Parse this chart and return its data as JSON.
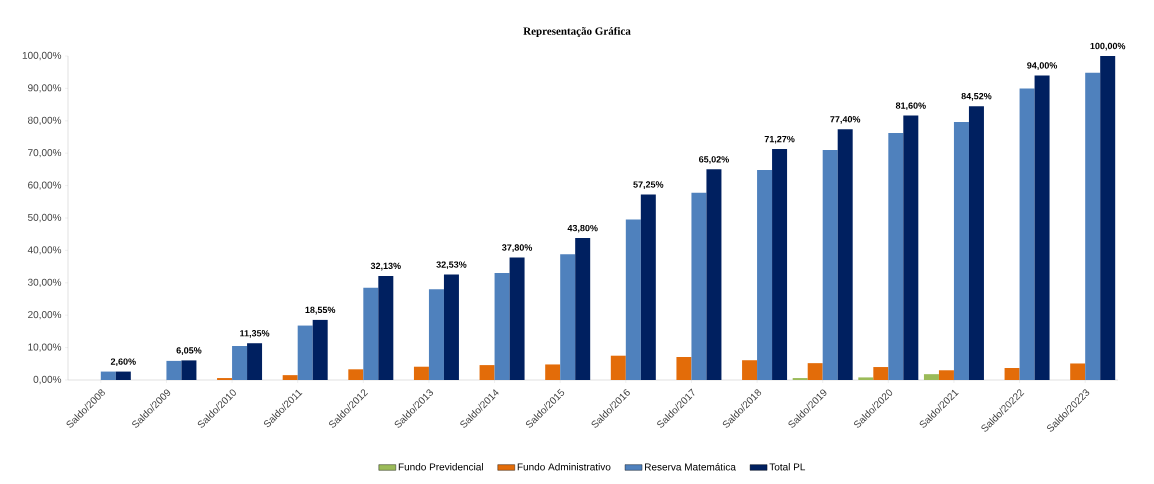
{
  "chart_data": {
    "type": "bar",
    "title": "Representação Gráfica",
    "categories": [
      "Saldo/2008",
      "Saldo/2009",
      "Saldo/2010",
      "Saldo/2011",
      "Saldo/2012",
      "Saldo/2013",
      "Saldo/2014",
      "Saldo/2015",
      "Saldo/2016",
      "Saldo/2017",
      "Saldo/2018",
      "Saldo/2019",
      "Saldo/2020",
      "Saldo/2021",
      "Saldo/20222",
      "Saldo/20223"
    ],
    "series": [
      {
        "name": "Fundo Previdencial",
        "color": "#9bbb59",
        "values": [
          0,
          0,
          0,
          0,
          0,
          0,
          0,
          0,
          0,
          0,
          0,
          0.6,
          0.8,
          1.8,
          0,
          0
        ]
      },
      {
        "name": "Fundo Administrativo",
        "color": "#e36c09",
        "values": [
          0,
          0,
          0.6,
          1.5,
          3.3,
          4.1,
          4.6,
          4.8,
          7.5,
          7.1,
          6.1,
          5.2,
          4.0,
          3.0,
          3.7,
          5.1
        ]
      },
      {
        "name": "Reserva Matemática",
        "color": "#4f81bd",
        "values": [
          2.6,
          5.9,
          10.5,
          16.8,
          28.5,
          28.0,
          33.0,
          38.8,
          49.5,
          57.8,
          64.8,
          71.0,
          76.2,
          79.6,
          90.0,
          94.8
        ]
      },
      {
        "name": "Total PL",
        "color": "#002060",
        "values": [
          2.6,
          6.05,
          11.35,
          18.55,
          32.13,
          32.53,
          37.8,
          43.8,
          57.25,
          65.02,
          71.27,
          77.4,
          81.6,
          84.52,
          94.0,
          100.0
        ],
        "value_labels": [
          "2,60%",
          "6,05%",
          "11,35%",
          "18,55%",
          "32,13%",
          "32,53%",
          "37,80%",
          "43,80%",
          "57,25%",
          "65,02%",
          "71,27%",
          "77,40%",
          "81,60%",
          "84,52%",
          "94,00%",
          "100,00%"
        ]
      }
    ],
    "ylim": [
      0,
      100
    ],
    "yticks": [
      {
        "value": 0,
        "label": "0,00%"
      },
      {
        "value": 10,
        "label": "10,00%"
      },
      {
        "value": 20,
        "label": "20,00%"
      },
      {
        "value": 30,
        "label": "30,00%"
      },
      {
        "value": 40,
        "label": "40,00%"
      },
      {
        "value": 50,
        "label": "50,00%"
      },
      {
        "value": 60,
        "label": "60,00%"
      },
      {
        "value": 70,
        "label": "70,00%"
      },
      {
        "value": 80,
        "label": "80,00%"
      },
      {
        "value": 90,
        "label": "90,00%"
      },
      {
        "value": 100,
        "label": "100,00%"
      }
    ],
    "grid": false,
    "legend": "bottom"
  }
}
